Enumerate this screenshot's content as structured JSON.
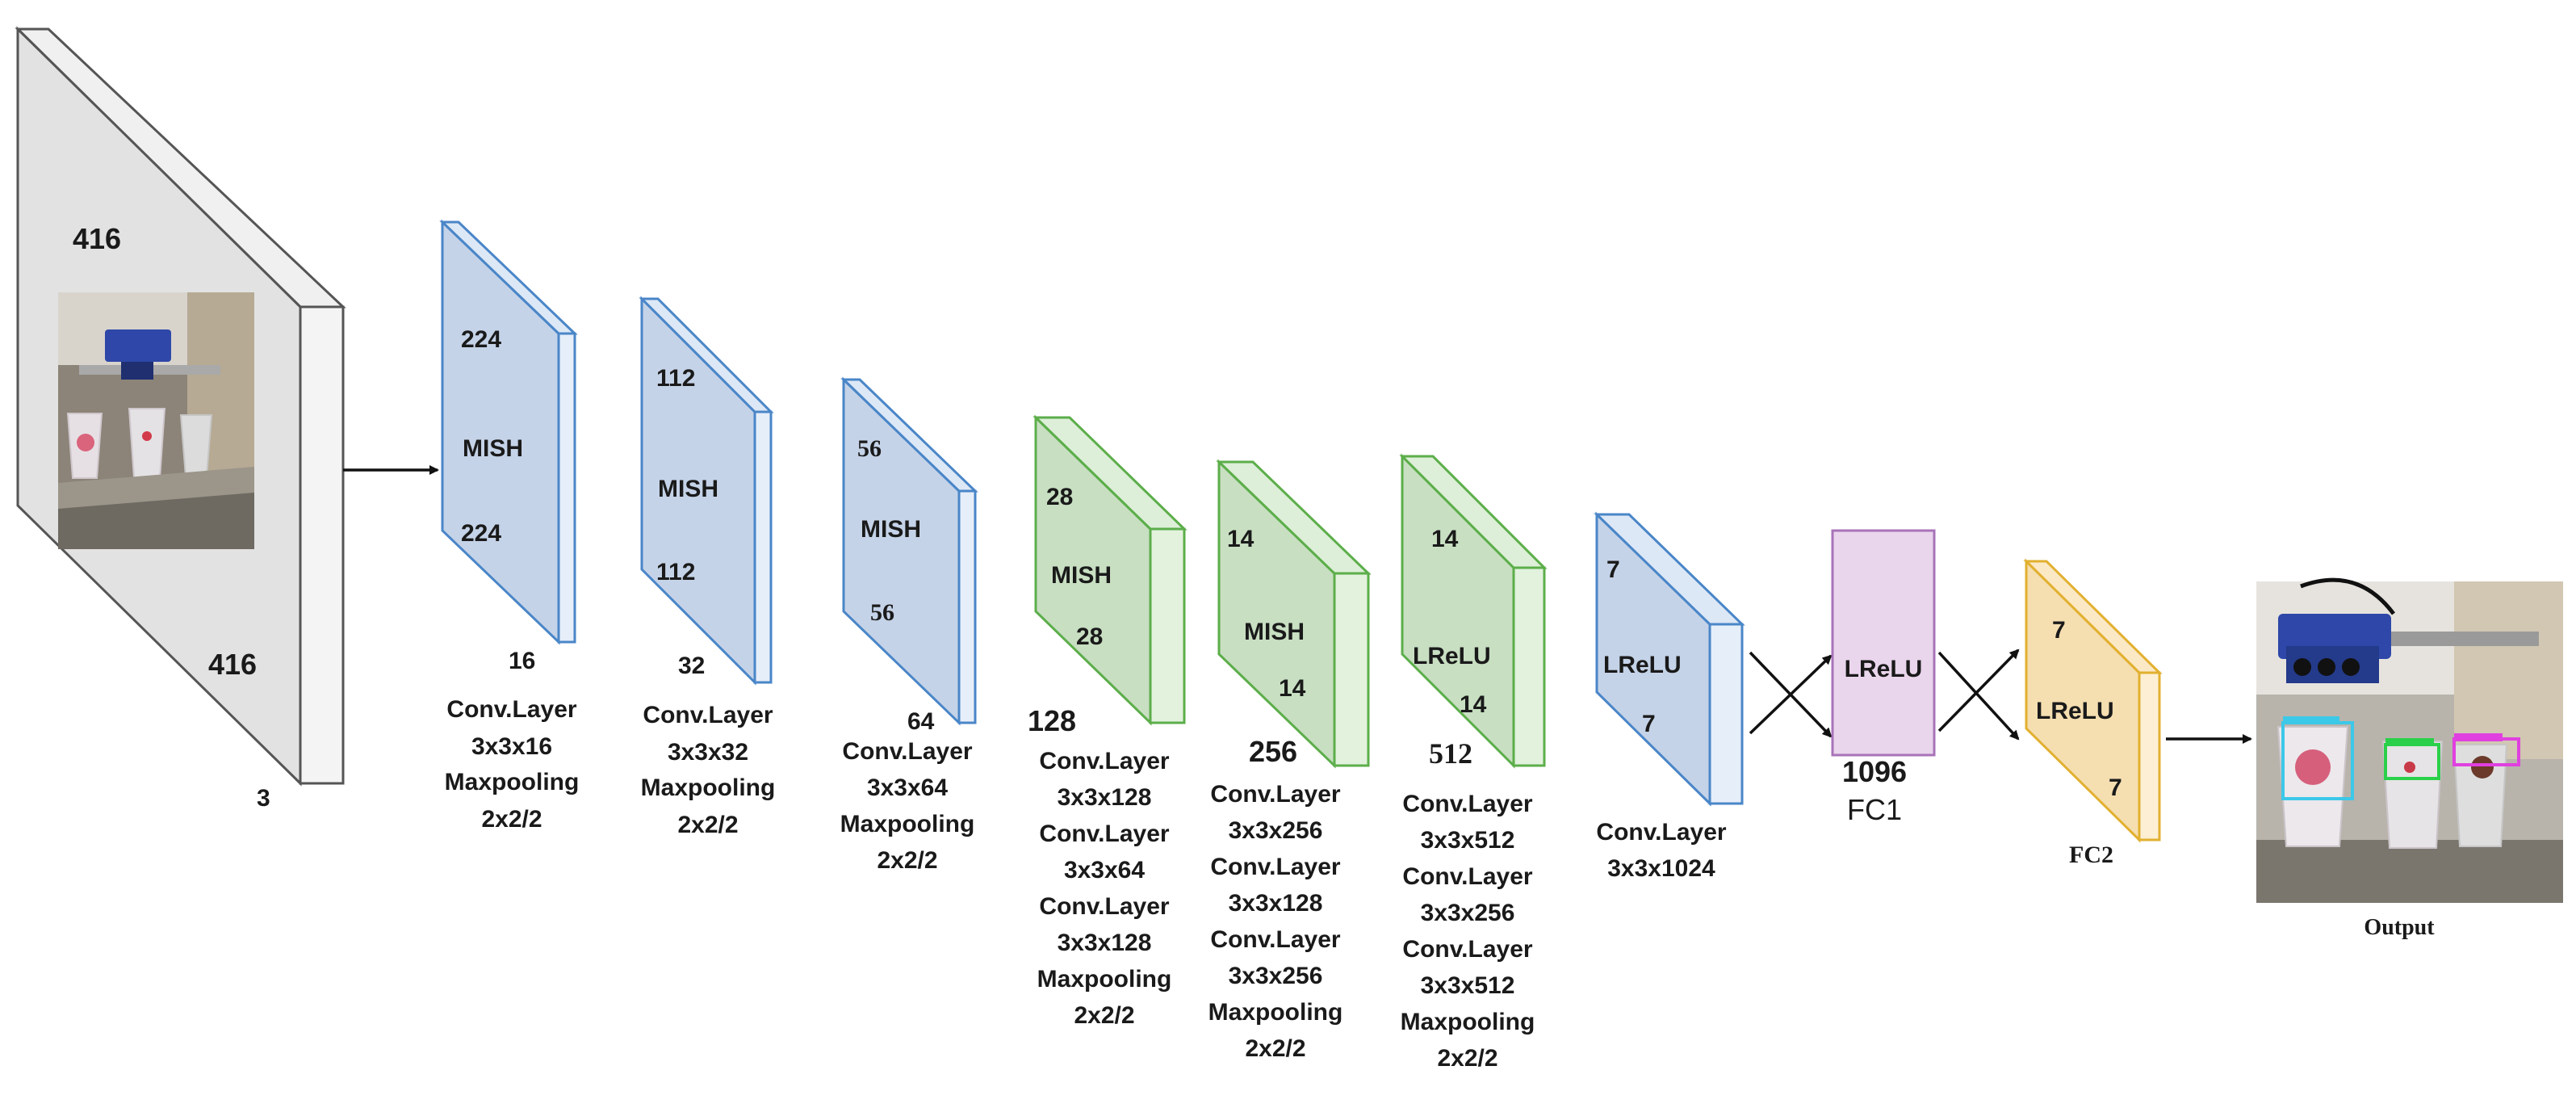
{
  "input": {
    "dims": [
      "416",
      "416",
      "3"
    ]
  },
  "layers": [
    {
      "dims": [
        "224",
        "224"
      ],
      "activation": "MISH",
      "channels": "16",
      "ops": [
        "Conv.Layer",
        "3x3x16",
        "Maxpooling",
        "2x2/2"
      ]
    },
    {
      "dims": [
        "112",
        "112"
      ],
      "activation": "MISH",
      "channels": "32",
      "ops": [
        "Conv.Layer",
        "3x3x32",
        "Maxpooling",
        "2x2/2"
      ]
    },
    {
      "dims": [
        "56",
        "56"
      ],
      "activation": "MISH",
      "channels": "64",
      "ops": [
        "Conv.Layer",
        "3x3x64",
        "Maxpooling",
        "2x2/2"
      ]
    },
    {
      "dims": [
        "28",
        "28"
      ],
      "activation": "MISH",
      "channels": "128",
      "ops": [
        "Conv.Layer",
        "3x3x128",
        "Conv.Layer",
        "3x3x64",
        "Conv.Layer",
        "3x3x128",
        "Maxpooling",
        "2x2/2"
      ]
    },
    {
      "dims": [
        "14",
        "14"
      ],
      "activation": "MISH",
      "channels": "256",
      "ops": [
        "Conv.Layer",
        "3x3x256",
        "Conv.Layer",
        "3x3x128",
        "Conv.Layer",
        "3x3x256",
        "Maxpooling",
        "2x2/2"
      ]
    },
    {
      "dims": [
        "14",
        "14"
      ],
      "activation": "LReLU",
      "channels": "512",
      "ops": [
        "Conv.Layer",
        "3x3x512",
        "Conv.Layer",
        "3x3x256",
        "Conv.Layer",
        "3x3x512",
        "Maxpooling",
        "2x2/2"
      ]
    },
    {
      "dims": [
        "7",
        "7"
      ],
      "activation": "LReLU",
      "ops": [
        "Conv.Layer",
        "3x3x1024"
      ]
    }
  ],
  "fc1": {
    "activation": "LReLU",
    "size": "1096",
    "label": "FC1"
  },
  "fc2": {
    "dims": [
      "7",
      "7"
    ],
    "activation": "LReLU",
    "label": "FC2"
  },
  "output": {
    "label": "Output"
  },
  "colors": {
    "blue_fill": "#c5d3e8",
    "blue_side": "#dde8f6",
    "blue_stroke": "#4a86c8",
    "green_fill": "#c8dfc2",
    "green_side": "#ddefd8",
    "green_stroke": "#5cae4a",
    "pink_fill": "#e9d5ec",
    "pink_stroke": "#a873b8",
    "yellow_fill": "#f5deb0",
    "yellow_side": "#fbe9c6",
    "yellow_stroke": "#e2b030",
    "input_fill": "#e2e2e2",
    "input_side": "#f2f2f2",
    "input_stroke": "#555555"
  }
}
